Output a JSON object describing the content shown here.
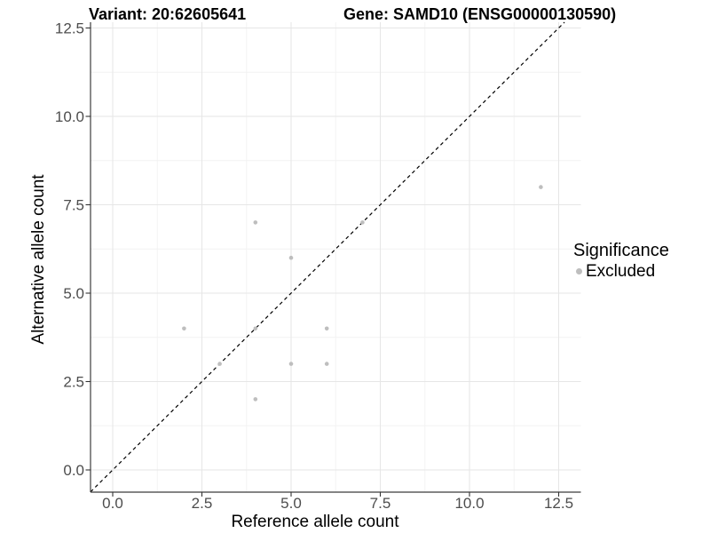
{
  "titles": {
    "variant": "Variant: 20:62605641",
    "gene": "Gene: SAMD10 (ENSG00000130590)"
  },
  "axes": {
    "x": {
      "title": "Reference allele count",
      "tick_labels": [
        "0.0",
        "2.5",
        "5.0",
        "7.5",
        "10.0",
        "12.5"
      ],
      "tick_values": [
        0,
        2.5,
        5,
        7.5,
        10,
        12.5
      ],
      "minor_values": [
        1.25,
        3.75,
        6.25,
        8.75,
        11.25
      ]
    },
    "y": {
      "title": "Alternative allele count",
      "tick_labels": [
        "0.0",
        "2.5",
        "5.0",
        "7.5",
        "10.0",
        "12.5"
      ],
      "tick_values": [
        0,
        2.5,
        5,
        7.5,
        10,
        12.5
      ],
      "minor_values": [
        1.25,
        3.75,
        6.25,
        8.75,
        11.25
      ]
    }
  },
  "legend": {
    "title": "Significance",
    "items": [
      {
        "label": "Excluded",
        "marker": "circle",
        "marker_color": "#bebebe"
      }
    ]
  },
  "chart_data": {
    "type": "scatter",
    "title": "Variant: 20:62605641    Gene: SAMD10 (ENSG00000130590)",
    "xlabel": "Reference allele count",
    "ylabel": "Alternative allele count",
    "xlim": [
      -0.625,
      13.125
    ],
    "ylim": [
      -0.63,
      12.66
    ],
    "x_ticks": [
      0,
      2.5,
      5,
      7.5,
      10,
      12.5
    ],
    "y_ticks": [
      0,
      2.5,
      5,
      7.5,
      10,
      12.5
    ],
    "grid": "major and minor gridlines, light gray on white panel",
    "legend_position": "right",
    "series": [
      {
        "name": "Excluded",
        "marker": "circle",
        "color": "#bebebe",
        "points": [
          [
            2,
            4
          ],
          [
            3,
            3
          ],
          [
            4,
            2
          ],
          [
            4,
            4
          ],
          [
            4,
            7
          ],
          [
            5,
            3
          ],
          [
            5,
            6
          ],
          [
            6,
            3
          ],
          [
            6,
            4
          ],
          [
            7,
            7
          ],
          [
            12,
            8
          ]
        ]
      }
    ],
    "reference_line": {
      "type": "identity y=x",
      "slope": 1,
      "intercept": 0,
      "style": "dashed",
      "color": "#000000"
    }
  },
  "colors": {
    "point": "#bebebe",
    "grid_major": "#e6e6e6",
    "grid_minor": "#f2f2f2",
    "axis_line": "#3c3c3c",
    "tick_mark": "#333333",
    "tick_label": "#4d4d4d",
    "text": "#000000",
    "background": "#ffffff"
  }
}
